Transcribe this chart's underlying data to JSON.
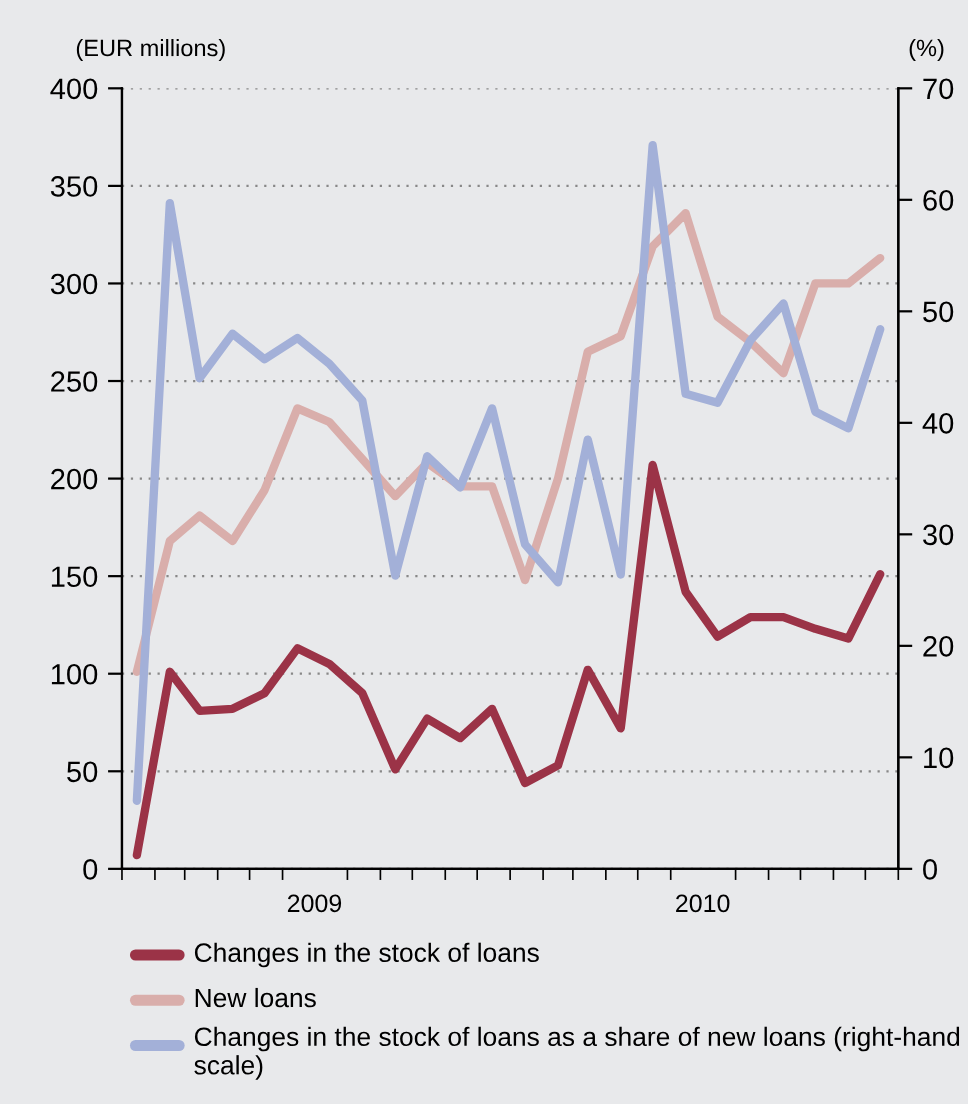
{
  "chart_data": {
    "type": "line",
    "ylabel": "(EUR millions)",
    "y2label": "(%)",
    "x": [
      "2009-01-15",
      "2009-02-15",
      "2009-03-15",
      "2009-04-15",
      "2009-05-15",
      "2009-06-15",
      "2009-07-15",
      "2009-08-15",
      "2009-09-15",
      "2009-10-15",
      "2009-11-15",
      "2009-12-15",
      "2010-01-15",
      "2010-02-15",
      "2010-03-15",
      "2010-04-15",
      "2010-05-15",
      "2010-06-15",
      "2010-07-15",
      "2010-08-15",
      "2010-09-15",
      "2010-10-15",
      "2010-11-15",
      "2010-12-15"
    ],
    "xlim": [
      "2009-01-01",
      "2011-01-01"
    ],
    "xticks": [
      {
        "value": "2009-01-01",
        "label": null
      },
      {
        "value": "2009-02-01",
        "label": null
      },
      {
        "value": "2009-03-01",
        "label": null
      },
      {
        "value": "2009-04-01",
        "label": null
      },
      {
        "value": "2009-05-01",
        "label": null
      },
      {
        "value": "2009-06-01",
        "label": null
      },
      {
        "value": "2009-07-01",
        "label": "2009"
      },
      {
        "value": "2009-08-01",
        "label": null
      },
      {
        "value": "2009-09-01",
        "label": null
      },
      {
        "value": "2009-10-01",
        "label": null
      },
      {
        "value": "2009-11-01",
        "label": null
      },
      {
        "value": "2009-12-01",
        "label": null
      },
      {
        "value": "2010-01-01",
        "label": null
      },
      {
        "value": "2010-02-01",
        "label": null
      },
      {
        "value": "2010-03-01",
        "label": null
      },
      {
        "value": "2010-04-01",
        "label": null
      },
      {
        "value": "2010-05-01",
        "label": null
      },
      {
        "value": "2010-06-01",
        "label": null
      },
      {
        "value": "2010-07-01",
        "label": "2010"
      },
      {
        "value": "2010-08-01",
        "label": null
      },
      {
        "value": "2010-09-01",
        "label": null
      },
      {
        "value": "2010-10-01",
        "label": null
      },
      {
        "value": "2010-11-01",
        "label": null
      },
      {
        "value": "2010-12-01",
        "label": null
      },
      {
        "value": "2011-01-01",
        "label": null
      }
    ],
    "ylim": [
      0,
      400
    ],
    "yticks": [
      0,
      50,
      100,
      150,
      200,
      250,
      300,
      350,
      400
    ],
    "y2lim": [
      0,
      70
    ],
    "y2ticks": [
      0,
      10,
      20,
      30,
      40,
      50,
      60,
      70
    ],
    "grid": "y",
    "legend": "bottom",
    "line_style": "solid",
    "marker": "none",
    "series": [
      {
        "name": "Changes in the stock of loans",
        "color": "#9b3347",
        "values": [
          7,
          101,
          81,
          82,
          90,
          113,
          105,
          90,
          51,
          77,
          67,
          82,
          44,
          53,
          102,
          72,
          207,
          142,
          119,
          129,
          129,
          123,
          118,
          151
        ]
      },
      {
        "name": "New loans",
        "color": "#d9aeab",
        "values": [
          101,
          168,
          181,
          168,
          194,
          236,
          229,
          210,
          191,
          208,
          196,
          196,
          148,
          200,
          265,
          273,
          319,
          336,
          283,
          270,
          254,
          300,
          300,
          313
        ]
      },
      {
        "name": "Changes in the stock of loans as a share of new loans (right-hand scale)",
        "color": "#a3b0d8",
        "axis": "y2",
        "values": [
          6.1,
          59.7,
          44.0,
          48.0,
          45.7,
          47.6,
          45.3,
          42.0,
          26.3,
          37.0,
          34.2,
          41.3,
          29.1,
          25.7,
          38.5,
          26.4,
          64.9,
          42.6,
          41.8,
          47.4,
          50.7,
          41.0,
          39.5,
          48.4
        ]
      }
    ]
  }
}
